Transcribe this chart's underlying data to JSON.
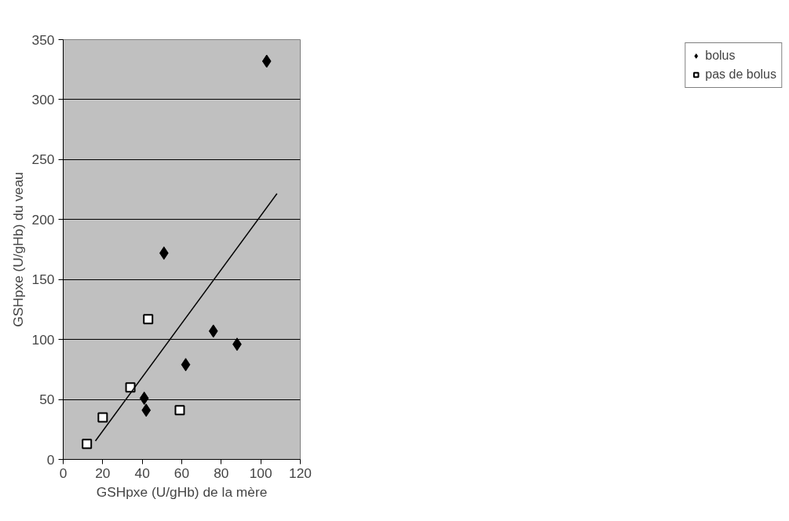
{
  "chart_data": {
    "type": "scatter",
    "xlabel": "GSHpxe (U/gHb) de la mère",
    "ylabel": "GSHpxe (U/gHb) du veau",
    "xlim": [
      0,
      120
    ],
    "ylim": [
      0,
      350
    ],
    "xticks": [
      0,
      20,
      40,
      60,
      80,
      100,
      120
    ],
    "yticks": [
      0,
      50,
      100,
      150,
      200,
      250,
      300,
      350
    ],
    "grid": "y",
    "legend": "right",
    "series": [
      {
        "name": "bolus",
        "color": "#000000",
        "marker": "diamond",
        "x": [
          103,
          51,
          76,
          88,
          62,
          41,
          42
        ],
        "values": [
          332,
          172,
          107,
          96,
          79,
          51,
          41
        ]
      },
      {
        "name": "pas de bolus",
        "color": "#ffffff",
        "marker": "square",
        "x": [
          12,
          20,
          34,
          43,
          59
        ],
        "values": [
          13,
          35,
          60,
          117,
          41
        ]
      },
      {
        "type": "line",
        "color": "#000000",
        "marker": "none",
        "x": [
          16.3,
          108.2
        ],
        "values": [
          15.4,
          221.6
        ]
      }
    ]
  }
}
